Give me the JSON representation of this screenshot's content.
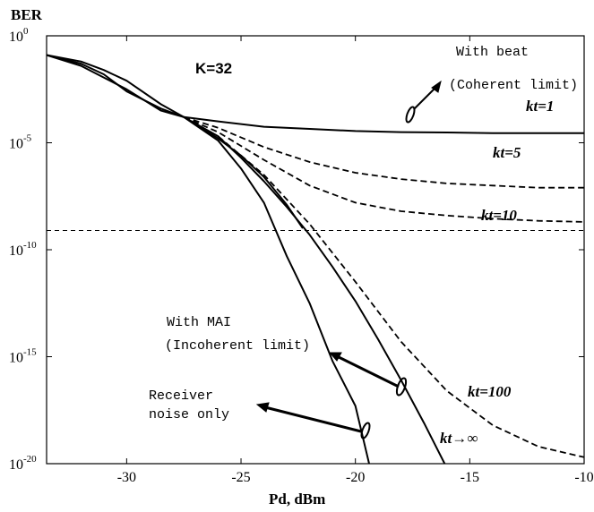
{
  "chart_data": {
    "type": "line",
    "title": "",
    "xlabel": "Pd, dBm",
    "ylabel": "BER",
    "xlim": [
      -33.5,
      -10
    ],
    "ylim_exp": [
      -20,
      0
    ],
    "yscale": "log",
    "grid": false,
    "x_ticks": [
      {
        "value": -30,
        "label": "-30"
      },
      {
        "value": -25,
        "label": "-25"
      },
      {
        "value": -20,
        "label": "-20"
      },
      {
        "value": -15,
        "label": "-15"
      },
      {
        "value": -10,
        "label": "-10"
      }
    ],
    "y_ticks": [
      {
        "exp": 0,
        "base": "10",
        "sup": "0"
      },
      {
        "exp": -5,
        "base": "10",
        "sup": "-5"
      },
      {
        "exp": -10,
        "base": "10",
        "sup": "-10"
      },
      {
        "exp": -15,
        "base": "10",
        "sup": "-15"
      },
      {
        "exp": -20,
        "base": "10",
        "sup": "-20"
      }
    ],
    "series": [
      {
        "name": "kt=1",
        "style": "solid",
        "x": [
          -33.5,
          -32,
          -30,
          -28.5,
          -27.5,
          -26,
          -24,
          -22,
          -20,
          -18,
          -16,
          -14,
          -12,
          -10
        ],
        "log10_y": [
          -0.9,
          -1.4,
          -2.5,
          -3.5,
          -3.8,
          -4.0,
          -4.25,
          -4.35,
          -4.45,
          -4.5,
          -4.52,
          -4.55,
          -4.55,
          -4.55
        ]
      },
      {
        "name": "kt=5",
        "style": "dashed",
        "x": [
          -27.5,
          -26,
          -24,
          -22,
          -20,
          -18,
          -16,
          -14,
          -12,
          -10
        ],
        "log10_y": [
          -3.8,
          -4.3,
          -5.2,
          -5.9,
          -6.4,
          -6.7,
          -6.9,
          -7.0,
          -7.1,
          -7.1
        ]
      },
      {
        "name": "kt=10",
        "style": "dashed",
        "x": [
          -27.5,
          -26,
          -24,
          -22,
          -20,
          -18,
          -16,
          -14,
          -12,
          -10
        ],
        "log10_y": [
          -3.8,
          -4.5,
          -5.8,
          -7.0,
          -7.8,
          -8.2,
          -8.4,
          -8.55,
          -8.65,
          -8.7
        ]
      },
      {
        "name": "kt=100",
        "style": "dashed",
        "x": [
          -27.5,
          -26,
          -24,
          -22,
          -20,
          -18,
          -16,
          -14,
          -12,
          -10
        ],
        "log10_y": [
          -3.8,
          -4.7,
          -6.5,
          -8.8,
          -11.5,
          -14.3,
          -16.6,
          -18.2,
          -19.2,
          -19.7
        ]
      },
      {
        "name": "kt→∞",
        "style": "solid",
        "x": [
          -27.5,
          -26,
          -25,
          -24,
          -23,
          -22,
          -21,
          -20,
          -19,
          -18,
          -17,
          -16.1
        ],
        "log10_y": [
          -3.8,
          -4.7,
          -5.7,
          -6.8,
          -8.0,
          -9.3,
          -10.8,
          -12.4,
          -14.2,
          -16.1,
          -18.1,
          -20
        ]
      },
      {
        "name": "Receiver noise only",
        "style": "solid",
        "x": [
          -33.5,
          -32,
          -31,
          -30,
          -28.5,
          -27.5,
          -26,
          -25,
          -24,
          -23,
          -22,
          -21,
          -20,
          -19.4
        ],
        "log10_y": [
          -0.9,
          -1.3,
          -1.8,
          -2.6,
          -3.4,
          -3.8,
          -4.9,
          -6.2,
          -7.8,
          -10.3,
          -12.5,
          -15.2,
          -17.3,
          -20
        ]
      },
      {
        "name": "Coherent limit",
        "style": "solid",
        "x": [
          -33.5,
          -32,
          -31,
          -30,
          -28.5,
          -27.5,
          -26,
          -25,
          -24,
          -23,
          -22.3
        ],
        "log10_y": [
          -0.9,
          -1.2,
          -1.6,
          -2.1,
          -3.2,
          -3.8,
          -4.8,
          -5.6,
          -6.6,
          -7.9,
          -9.0
        ]
      }
    ],
    "reference_line": {
      "style": "dashed",
      "log10_y": -9.1
    },
    "annotations": {
      "k_label": "K=32",
      "with_beat_1": "With beat",
      "with_beat_2": "(Coherent limit)",
      "with_mai_1": "With MAI",
      "with_mai_2": "(Incoherent limit)",
      "receiver_1": "Receiver",
      "receiver_2": "noise only",
      "kt1": "kt=1",
      "kt5": "kt=5",
      "kt10": "kt=10",
      "kt100": "kt=100",
      "ktinf": "kt→∞"
    }
  }
}
